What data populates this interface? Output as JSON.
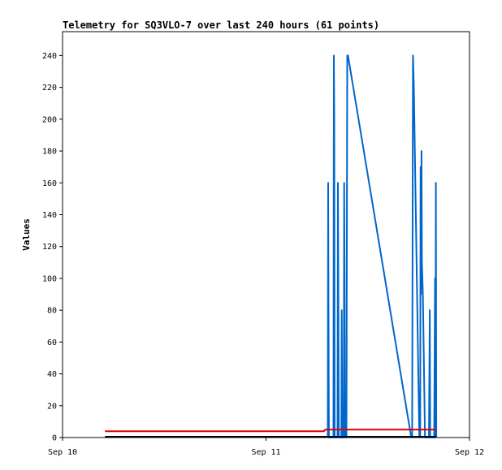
{
  "chart_data": {
    "type": "line",
    "title": "Telemetry for SQ3VLO-7 over last 240 hours (61 points)",
    "xlabel": "",
    "ylabel": "Values",
    "x_ticks": [
      "Sep 10",
      "Sep 11",
      "Sep 12"
    ],
    "x_range": [
      "Sep 10 00:00",
      "Sep 12 00:00"
    ],
    "ylim": [
      0,
      255
    ],
    "y_ticks": [
      0,
      20,
      40,
      60,
      80,
      100,
      120,
      140,
      160,
      180,
      200,
      220,
      240
    ],
    "grid": false,
    "series": [
      {
        "color": "#0066cc",
        "points": [
          [
            "Sep 11 07:17",
            0
          ],
          [
            "Sep 11 07:20",
            160
          ],
          [
            "Sep 11 07:22",
            80
          ],
          [
            "Sep 11 07:25",
            0
          ],
          [
            "Sep 11 07:57",
            0
          ],
          [
            "Sep 11 08:00",
            240
          ],
          [
            "Sep 11 08:03",
            200
          ],
          [
            "Sep 11 08:06",
            0
          ],
          [
            "Sep 11 08:26",
            0
          ],
          [
            "Sep 11 08:29",
            160
          ],
          [
            "Sep 11 08:32",
            80
          ],
          [
            "Sep 11 08:35",
            0
          ],
          [
            "Sep 11 08:53",
            0
          ],
          [
            "Sep 11 08:56",
            80
          ],
          [
            "Sep 11 09:00",
            0
          ],
          [
            "Sep 11 09:10",
            0
          ],
          [
            "Sep 11 09:13",
            160
          ],
          [
            "Sep 11 09:16",
            100
          ],
          [
            "Sep 11 09:19",
            0
          ],
          [
            "Sep 11 09:29",
            0
          ],
          [
            "Sep 11 09:35",
            240
          ],
          [
            "Sep 11 09:40",
            240
          ],
          [
            "Sep 11 17:08",
            0
          ],
          [
            "Sep 11 17:14",
            0
          ],
          [
            "Sep 11 17:20",
            240
          ],
          [
            "Sep 11 17:26",
            220
          ],
          [
            "Sep 11 18:05",
            0
          ],
          [
            "Sep 11 18:11",
            0
          ],
          [
            "Sep 11 18:14",
            170
          ],
          [
            "Sep 11 18:17",
            90
          ],
          [
            "Sep 11 18:20",
            180
          ],
          [
            "Sep 11 18:23",
            110
          ],
          [
            "Sep 11 18:30",
            90
          ],
          [
            "Sep 11 18:45",
            0
          ],
          [
            "Sep 11 19:13",
            0
          ],
          [
            "Sep 11 19:19",
            80
          ],
          [
            "Sep 11 19:22",
            0
          ],
          [
            "Sep 11 19:50",
            0
          ],
          [
            "Sep 11 19:56",
            100
          ],
          [
            "Sep 11 19:59",
            0
          ],
          [
            "Sep 11 20:02",
            160
          ],
          [
            "Sep 11 20:05",
            0
          ]
        ]
      },
      {
        "color": "#dd0000",
        "points": [
          [
            "Sep 10 05:00",
            4
          ],
          [
            "Sep 11 06:50",
            4
          ],
          [
            "Sep 11 07:00",
            5
          ],
          [
            "Sep 11 20:05",
            5
          ]
        ]
      },
      {
        "color": "#000000",
        "points": [
          [
            "Sep 10 05:00",
            0.5
          ],
          [
            "Sep 11 20:05",
            0.5
          ]
        ]
      }
    ]
  }
}
